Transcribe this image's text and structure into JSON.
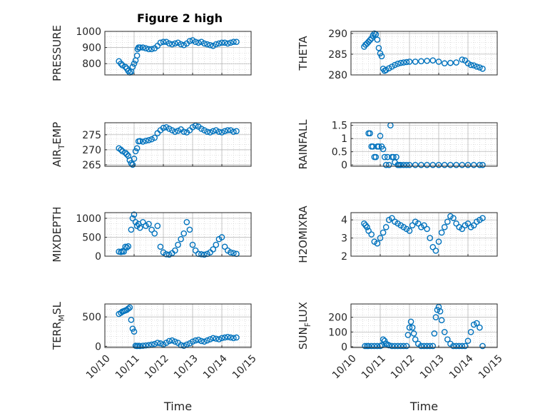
{
  "figure": {
    "title": "Figure 2 high",
    "marker_color": "#0072BD"
  },
  "chart_data": [
    {
      "type": "scatter",
      "ylabel": "PRESSURE",
      "xlabel": "",
      "ylim": [
        730,
        1000
      ],
      "yticks": [
        800,
        900,
        1000
      ],
      "xlim": [
        0,
        5
      ],
      "x": [
        0.48,
        0.55,
        0.6,
        0.7,
        0.75,
        0.8,
        0.85,
        0.9,
        0.95,
        1.0,
        1.05,
        1.1,
        1.12,
        1.15,
        1.2,
        1.3,
        1.4,
        1.5,
        1.6,
        1.7,
        1.8,
        1.9,
        2.0,
        2.1,
        2.2,
        2.3,
        2.4,
        2.5,
        2.6,
        2.7,
        2.8,
        2.9,
        3.0,
        3.1,
        3.2,
        3.3,
        3.4,
        3.5,
        3.6,
        3.7,
        3.8,
        3.9,
        4.0,
        4.1,
        4.2,
        4.3,
        4.4,
        4.5
      ],
      "y": [
        815,
        800,
        790,
        780,
        770,
        755,
        745,
        750,
        780,
        800,
        820,
        850,
        890,
        900,
        900,
        900,
        895,
        890,
        890,
        895,
        910,
        930,
        935,
        935,
        925,
        920,
        925,
        930,
        920,
        915,
        925,
        940,
        945,
        935,
        930,
        935,
        925,
        920,
        915,
        910,
        920,
        925,
        930,
        930,
        925,
        930,
        935,
        935
      ]
    },
    {
      "type": "scatter",
      "ylabel": "THETA",
      "xlabel": "",
      "ylim": [
        280,
        290.5
      ],
      "yticks": [
        280,
        285,
        290
      ],
      "xlim": [
        0,
        5
      ],
      "x": [
        0.45,
        0.5,
        0.55,
        0.6,
        0.65,
        0.7,
        0.75,
        0.8,
        0.85,
        0.9,
        0.95,
        1.0,
        1.05,
        1.1,
        1.15,
        1.2,
        1.3,
        1.4,
        1.5,
        1.6,
        1.7,
        1.8,
        1.9,
        2.0,
        2.2,
        2.4,
        2.6,
        2.8,
        3.0,
        3.2,
        3.4,
        3.6,
        3.8,
        3.9,
        4.0,
        4.1,
        4.2,
        4.3,
        4.4,
        4.5
      ],
      "y": [
        286.8,
        287.3,
        287.6,
        288.0,
        288.4,
        288.8,
        289.5,
        290.0,
        289.8,
        288.5,
        286.5,
        285.2,
        284.5,
        281.5,
        281.0,
        281.2,
        281.6,
        282.0,
        282.4,
        282.7,
        282.9,
        283.0,
        283.1,
        283.2,
        283.2,
        283.3,
        283.4,
        283.5,
        283.2,
        282.8,
        282.9,
        283.0,
        283.7,
        283.5,
        282.8,
        282.4,
        282.3,
        282.0,
        281.8,
        281.5
      ]
    },
    {
      "type": "scatter",
      "ylabel": "AIR_TEMP",
      "xlabel": "",
      "ylim": [
        264.5,
        279
      ],
      "yticks": [
        265,
        270,
        275
      ],
      "xlim": [
        0,
        5
      ],
      "x": [
        0.48,
        0.55,
        0.6,
        0.7,
        0.75,
        0.8,
        0.85,
        0.9,
        0.95,
        1.0,
        1.05,
        1.1,
        1.15,
        1.2,
        1.3,
        1.4,
        1.5,
        1.6,
        1.7,
        1.8,
        1.9,
        2.0,
        2.1,
        2.2,
        2.3,
        2.4,
        2.5,
        2.6,
        2.7,
        2.8,
        2.9,
        3.0,
        3.1,
        3.2,
        3.3,
        3.4,
        3.5,
        3.6,
        3.7,
        3.8,
        3.9,
        4.0,
        4.1,
        4.2,
        4.3,
        4.4,
        4.5
      ],
      "y": [
        270.5,
        270.0,
        269.5,
        269.0,
        268.5,
        268.0,
        266.5,
        265.5,
        265.0,
        267.0,
        269.5,
        270.5,
        272.8,
        272.9,
        272.7,
        273.0,
        273.2,
        273.5,
        274.0,
        275.5,
        276.5,
        277.3,
        277.5,
        277.0,
        276.5,
        276.0,
        276.3,
        276.8,
        276.0,
        275.8,
        276.5,
        277.5,
        278.0,
        277.7,
        277.0,
        276.5,
        276.0,
        275.8,
        276.2,
        276.5,
        276.0,
        275.8,
        276.2,
        276.5,
        276.5,
        276.0,
        276.2
      ]
    },
    {
      "type": "scatter",
      "ylabel": "RAINFALL",
      "xlabel": "",
      "ylim": [
        -0.05,
        1.6
      ],
      "yticks": [
        0,
        0.5,
        1,
        1.5
      ],
      "xlim": [
        0,
        5
      ],
      "x": [
        0.6,
        0.65,
        0.7,
        0.75,
        0.8,
        0.85,
        0.9,
        0.95,
        1.0,
        1.05,
        1.1,
        1.15,
        1.2,
        1.25,
        1.3,
        1.35,
        1.4,
        1.45,
        1.5,
        1.55,
        1.6,
        1.65,
        1.7,
        1.8,
        1.9,
        2.0,
        2.2,
        2.4,
        2.6,
        2.8,
        3.0,
        3.2,
        3.4,
        3.6,
        3.8,
        4.0,
        4.2,
        4.4,
        4.5
      ],
      "y": [
        1.2,
        1.2,
        0.7,
        0.7,
        0.3,
        0.3,
        0.7,
        0.7,
        1.1,
        0.7,
        0.6,
        0.3,
        0.0,
        0.3,
        0.0,
        1.5,
        0.3,
        0.3,
        0.1,
        0.3,
        0.0,
        0.0,
        0.0,
        0.0,
        0.0,
        0.0,
        0.0,
        0.0,
        0.0,
        0.0,
        0.0,
        0.0,
        0.0,
        0.0,
        0.0,
        0.0,
        0.0,
        0.0,
        0.0
      ]
    },
    {
      "type": "scatter",
      "ylabel": "MIXDEPTH",
      "xlabel": "",
      "ylim": [
        0,
        1150
      ],
      "yticks": [
        0,
        500,
        1000
      ],
      "xlim": [
        0,
        5
      ],
      "x": [
        0.48,
        0.55,
        0.6,
        0.65,
        0.7,
        0.75,
        0.8,
        0.9,
        0.95,
        1.0,
        1.05,
        1.1,
        1.15,
        1.2,
        1.3,
        1.4,
        1.5,
        1.6,
        1.7,
        1.8,
        1.9,
        2.0,
        2.1,
        2.2,
        2.3,
        2.4,
        2.5,
        2.6,
        2.7,
        2.8,
        2.9,
        3.0,
        3.1,
        3.2,
        3.3,
        3.4,
        3.5,
        3.6,
        3.7,
        3.8,
        3.9,
        4.0,
        4.1,
        4.2,
        4.3,
        4.4,
        4.5
      ],
      "y": [
        120,
        110,
        130,
        120,
        250,
        230,
        260,
        700,
        1000,
        1100,
        900,
        800,
        850,
        750,
        900,
        800,
        850,
        700,
        600,
        800,
        250,
        100,
        50,
        40,
        80,
        150,
        300,
        450,
        600,
        900,
        700,
        300,
        150,
        60,
        50,
        40,
        60,
        100,
        180,
        300,
        450,
        500,
        250,
        150,
        100,
        80,
        60
      ]
    },
    {
      "type": "scatter",
      "ylabel": "H2OMIXRA",
      "xlabel": "",
      "ylim": [
        2,
        4.4
      ],
      "yticks": [
        2,
        3,
        4
      ],
      "xlim": [
        0,
        5
      ],
      "x": [
        0.45,
        0.5,
        0.55,
        0.6,
        0.7,
        0.8,
        0.9,
        1.0,
        1.1,
        1.2,
        1.3,
        1.4,
        1.5,
        1.6,
        1.7,
        1.8,
        1.9,
        2.0,
        2.1,
        2.2,
        2.3,
        2.4,
        2.5,
        2.6,
        2.7,
        2.8,
        2.9,
        3.0,
        3.1,
        3.2,
        3.3,
        3.4,
        3.5,
        3.6,
        3.7,
        3.8,
        3.9,
        4.0,
        4.1,
        4.2,
        4.3,
        4.4,
        4.5
      ],
      "y": [
        3.8,
        3.7,
        3.6,
        3.4,
        3.2,
        2.8,
        2.7,
        3.0,
        3.3,
        3.6,
        4.0,
        4.1,
        3.9,
        3.8,
        3.7,
        3.6,
        3.5,
        3.4,
        3.7,
        3.9,
        3.8,
        3.6,
        3.7,
        3.5,
        3.0,
        2.5,
        2.3,
        2.8,
        3.3,
        3.6,
        3.9,
        4.2,
        4.1,
        3.8,
        3.6,
        3.5,
        3.7,
        3.8,
        3.6,
        3.7,
        3.9,
        4.0,
        4.1
      ]
    },
    {
      "type": "scatter",
      "ylabel": "TERR_MSL",
      "xlabel": "Time",
      "ylim": [
        -20,
        720
      ],
      "yticks": [
        0,
        500
      ],
      "xlim": [
        0,
        5
      ],
      "xticks": [
        "10/10",
        "10/11",
        "10/12",
        "10/13",
        "10/14",
        "10/15"
      ],
      "x": [
        0.48,
        0.55,
        0.6,
        0.65,
        0.7,
        0.75,
        0.8,
        0.85,
        0.9,
        0.95,
        1.0,
        1.05,
        1.1,
        1.15,
        1.2,
        1.3,
        1.4,
        1.5,
        1.6,
        1.7,
        1.8,
        1.9,
        2.0,
        2.1,
        2.2,
        2.3,
        2.4,
        2.5,
        2.6,
        2.7,
        2.8,
        2.9,
        3.0,
        3.1,
        3.2,
        3.3,
        3.4,
        3.5,
        3.6,
        3.7,
        3.8,
        3.9,
        4.0,
        4.1,
        4.2,
        4.3,
        4.4,
        4.5
      ],
      "y": [
        550,
        570,
        590,
        600,
        610,
        620,
        640,
        660,
        450,
        300,
        250,
        10,
        5,
        8,
        5,
        10,
        15,
        20,
        30,
        40,
        60,
        50,
        30,
        60,
        90,
        100,
        80,
        60,
        20,
        10,
        30,
        50,
        80,
        100,
        110,
        90,
        80,
        100,
        120,
        140,
        130,
        120,
        140,
        150,
        160,
        150,
        140,
        150
      ]
    },
    {
      "type": "scatter",
      "ylabel": "SUN_FLUX",
      "xlabel": "Time",
      "ylim": [
        -5,
        290
      ],
      "yticks": [
        0,
        100,
        200
      ],
      "xlim": [
        0,
        5
      ],
      "xticks": [
        "10/10",
        "10/11",
        "10/12",
        "10/13",
        "10/14",
        "10/15"
      ],
      "x": [
        0.48,
        0.55,
        0.6,
        0.7,
        0.8,
        0.9,
        1.0,
        1.05,
        1.1,
        1.15,
        1.2,
        1.25,
        1.3,
        1.4,
        1.5,
        1.6,
        1.7,
        1.8,
        1.9,
        1.95,
        2.0,
        2.05,
        2.1,
        2.15,
        2.2,
        2.3,
        2.4,
        2.5,
        2.6,
        2.7,
        2.8,
        2.85,
        2.9,
        2.95,
        3.0,
        3.05,
        3.1,
        3.2,
        3.3,
        3.4,
        3.5,
        3.6,
        3.7,
        3.8,
        3.9,
        4.0,
        4.1,
        4.2,
        4.3,
        4.4,
        4.5
      ],
      "y": [
        5,
        5,
        5,
        5,
        5,
        5,
        5,
        10,
        50,
        40,
        20,
        15,
        10,
        5,
        5,
        5,
        5,
        5,
        5,
        80,
        130,
        170,
        130,
        90,
        50,
        20,
        5,
        5,
        5,
        5,
        5,
        90,
        200,
        250,
        270,
        240,
        180,
        100,
        50,
        20,
        5,
        5,
        5,
        5,
        5,
        40,
        100,
        150,
        160,
        130,
        5
      ]
    }
  ]
}
